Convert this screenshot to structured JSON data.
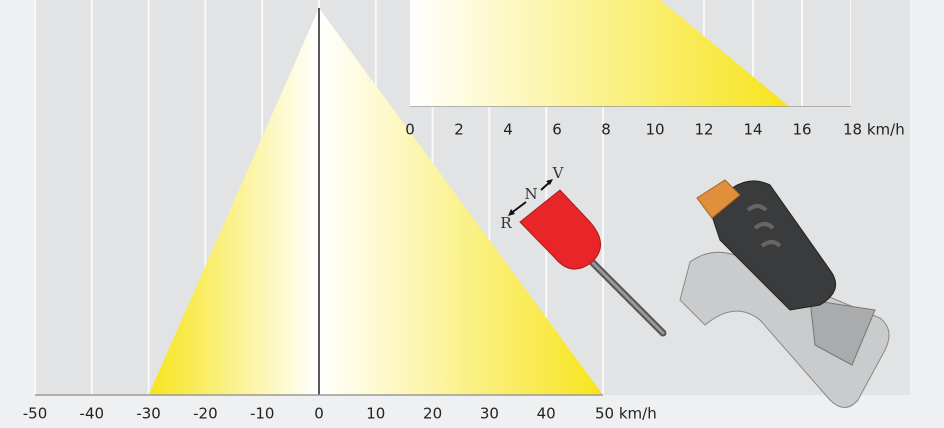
{
  "chart_data": [
    {
      "type": "triangle",
      "xlim": [
        -50,
        50
      ],
      "xticks": [
        -50,
        -40,
        -30,
        -20,
        -10,
        0,
        10,
        20,
        30,
        40,
        {
          "value": 50,
          "label": "50 km/h"
        }
      ],
      "range": {
        "min": -30,
        "max": 50
      },
      "color": "#f7e41c",
      "grid": true
    },
    {
      "type": "triangle",
      "xlim": [
        0,
        18
      ],
      "xticks": [
        0,
        2,
        4,
        6,
        8,
        10,
        12,
        14,
        16,
        {
          "value": 18,
          "label": "18 km/h"
        }
      ],
      "range": {
        "min": 0,
        "max": 15.5
      },
      "color": "#f7e41c",
      "grid": true
    }
  ],
  "lever": {
    "labels": [
      "R",
      "N",
      "V"
    ]
  }
}
